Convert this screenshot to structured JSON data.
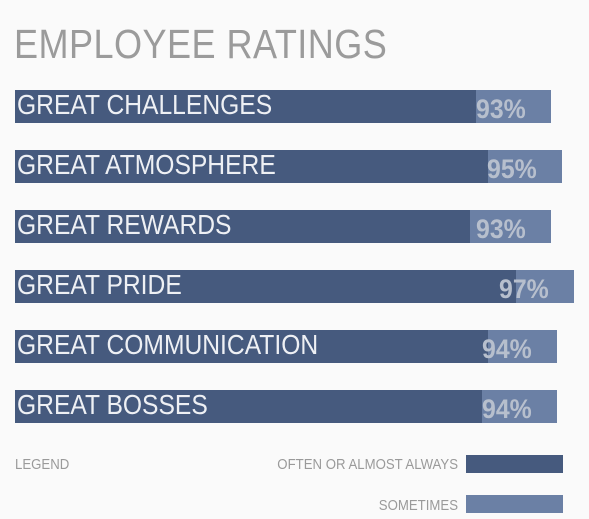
{
  "chart_data": {
    "type": "bar",
    "title": "EMPLOYEE RATINGS",
    "orientation": "horizontal",
    "stacked": true,
    "categories": [
      "GREAT CHALLENGES",
      "GREAT ATMOSPHERE",
      "GREAT REWARDS",
      "GREAT PRIDE",
      "GREAT COMMUNICATION",
      "GREAT BOSSES"
    ],
    "series": [
      {
        "name": "OFTEN OR ALMOST ALWAYS",
        "values": [
          80,
          82,
          79,
          87,
          82,
          81
        ]
      },
      {
        "name": "SOMETIMES",
        "values": [
          13,
          13,
          14,
          10,
          12,
          13
        ]
      }
    ],
    "totals_labels": [
      "93%",
      "95%",
      "93%",
      "97%",
      "94%",
      "94%"
    ],
    "totals": [
      93,
      95,
      93,
      97,
      94,
      94
    ],
    "xlim": [
      0,
      97
    ],
    "colors": {
      "often": "#465a7e",
      "sometimes": "#6b80a5"
    },
    "legend": {
      "title": "LEGEND",
      "placement": "bottom-right"
    }
  }
}
